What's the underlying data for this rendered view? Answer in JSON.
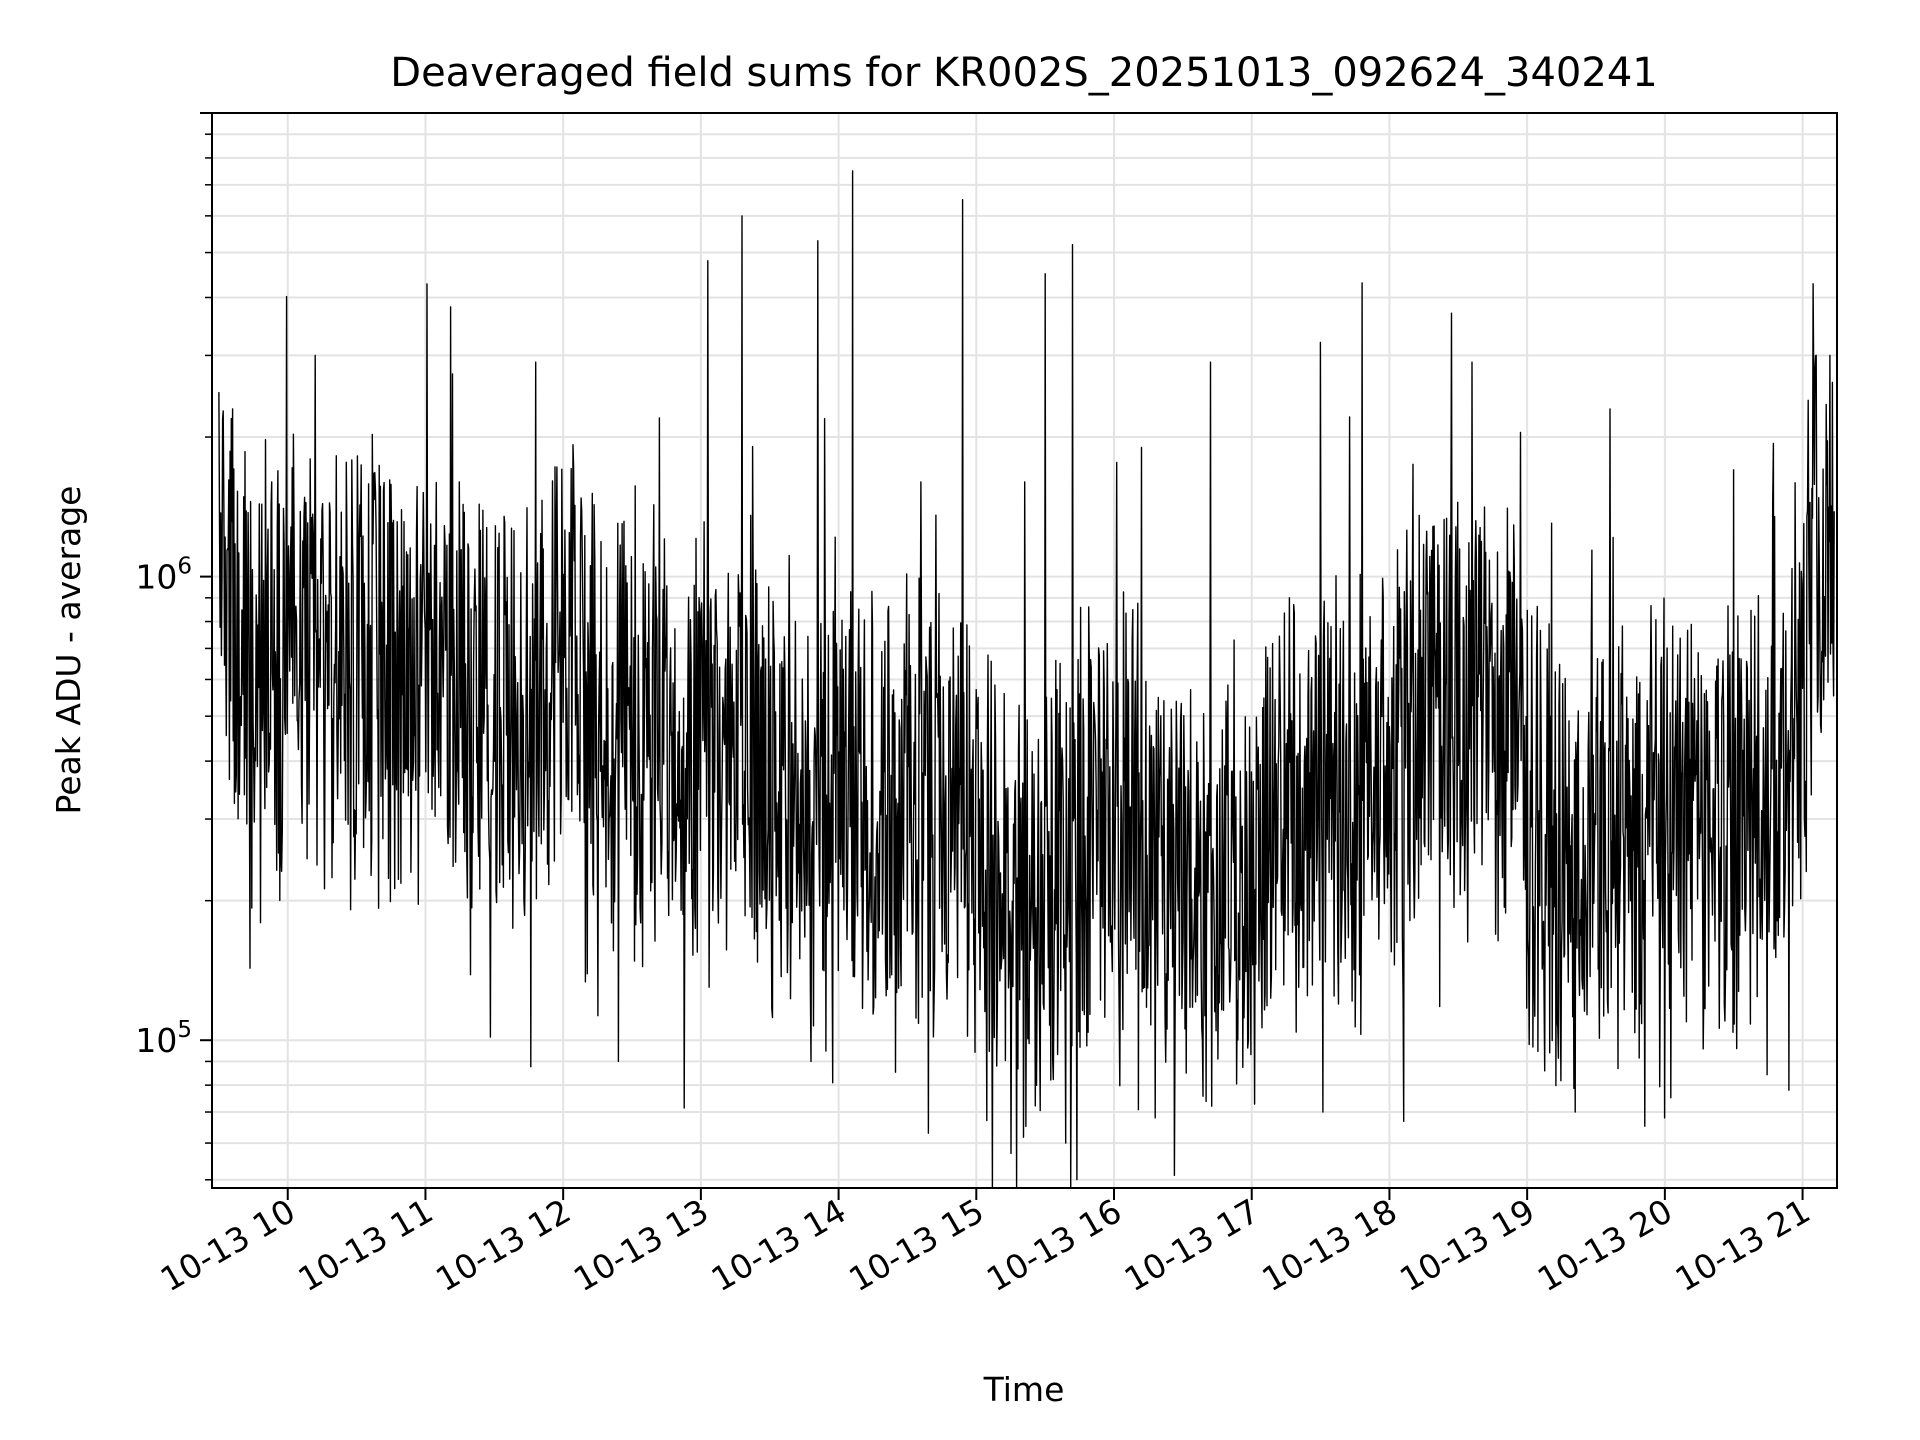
{
  "chart_data": {
    "type": "line",
    "title": "Deaveraged field sums for KR002S_20251013_092624_340241",
    "xlabel": "Time",
    "ylabel": "Peak ADU - average",
    "yscale": "log",
    "ylim": [
      48000,
      10000000
    ],
    "xlim_hours": [
      9.45,
      21.25
    ],
    "grid": true,
    "line_color": "#000000",
    "x_ticks": [
      {
        "hour": 10,
        "label": "10-13 10"
      },
      {
        "hour": 11,
        "label": "10-13 11"
      },
      {
        "hour": 12,
        "label": "10-13 12"
      },
      {
        "hour": 13,
        "label": "10-13 13"
      },
      {
        "hour": 14,
        "label": "10-13 14"
      },
      {
        "hour": 15,
        "label": "10-13 15"
      },
      {
        "hour": 16,
        "label": "10-13 16"
      },
      {
        "hour": 17,
        "label": "10-13 17"
      },
      {
        "hour": 18,
        "label": "10-13 18"
      },
      {
        "hour": 19,
        "label": "10-13 19"
      },
      {
        "hour": 20,
        "label": "10-13 20"
      },
      {
        "hour": 21,
        "label": "10-13 21"
      }
    ],
    "y_ticks": [
      {
        "value": 100000,
        "base": "10",
        "exp": "5"
      },
      {
        "value": 1000000,
        "base": "10",
        "exp": "6"
      }
    ],
    "series": [
      {
        "name": "Deaveraged field sum",
        "baseline_hours": [
          9.45,
          9.6,
          10.0,
          10.5,
          11.0,
          11.5,
          12.0,
          12.5,
          13.0,
          13.5,
          13.8,
          14.5,
          15.0,
          15.3,
          15.6,
          16.0,
          16.5,
          16.9,
          17.3,
          17.8,
          18.3,
          18.8,
          19.2,
          19.6,
          20.0,
          20.5,
          20.9,
          21.1,
          21.25
        ],
        "baseline_values": [
          1300000,
          650000,
          700000,
          600000,
          650000,
          500000,
          600000,
          500000,
          450000,
          380000,
          300000,
          320000,
          280000,
          160000,
          250000,
          300000,
          230000,
          200000,
          330000,
          330000,
          600000,
          500000,
          230000,
          250000,
          280000,
          300000,
          380000,
          1000000,
          1300000
        ],
        "spikes": [
          {
            "hour": 13.05,
            "value": 4800000
          },
          {
            "hour": 13.3,
            "value": 6000000
          },
          {
            "hour": 13.85,
            "value": 5300000
          },
          {
            "hour": 14.1,
            "value": 7500000
          },
          {
            "hour": 14.9,
            "value": 6500000
          },
          {
            "hour": 15.5,
            "value": 4500000
          },
          {
            "hour": 15.7,
            "value": 5200000
          },
          {
            "hour": 10.2,
            "value": 3000000
          },
          {
            "hour": 11.8,
            "value": 2900000
          },
          {
            "hour": 12.7,
            "value": 2200000
          },
          {
            "hour": 16.7,
            "value": 2900000
          },
          {
            "hour": 17.5,
            "value": 3200000
          },
          {
            "hour": 17.8,
            "value": 4300000
          },
          {
            "hour": 18.45,
            "value": 3700000
          },
          {
            "hour": 18.6,
            "value": 2900000
          },
          {
            "hour": 19.6,
            "value": 2300000
          },
          {
            "hour": 21.1,
            "value": 3000000
          },
          {
            "hour": 21.2,
            "value": 3000000
          },
          {
            "hour": 9.5,
            "value": 2500000
          },
          {
            "hour": 9.6,
            "value": 2300000
          },
          {
            "hour": 14.6,
            "value": 1600000
          },
          {
            "hour": 15.35,
            "value": 1600000
          },
          {
            "hour": 16.2,
            "value": 1900000
          },
          {
            "hour": 20.5,
            "value": 1700000
          }
        ],
        "dips": [
          {
            "hour": 15.25,
            "value": 57000
          },
          {
            "hour": 15.65,
            "value": 60000
          },
          {
            "hour": 14.65,
            "value": 63000
          },
          {
            "hour": 16.3,
            "value": 68000
          },
          {
            "hour": 19.35,
            "value": 70000
          },
          {
            "hour": 20.0,
            "value": 68000
          },
          {
            "hour": 20.9,
            "value": 78000
          },
          {
            "hour": 12.4,
            "value": 90000
          },
          {
            "hour": 13.8,
            "value": 90000
          }
        ]
      }
    ]
  }
}
